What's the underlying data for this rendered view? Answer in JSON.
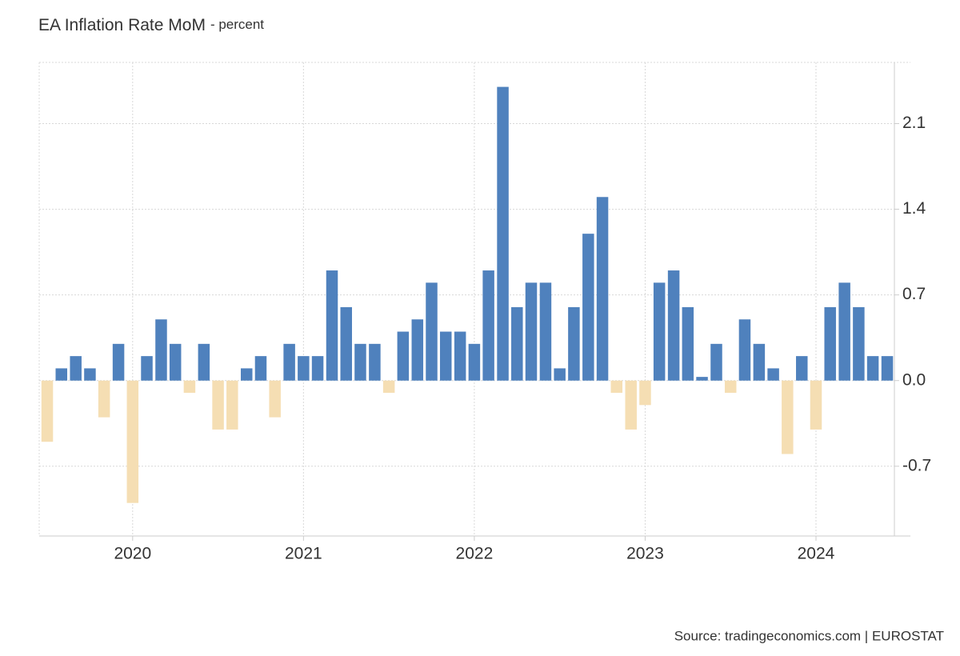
{
  "chart_data": {
    "type": "bar",
    "title": "EA Inflation Rate MoM",
    "subtitle": "- percent",
    "source": "Source: tradingeconomics.com | EUROSTAT",
    "x": [
      2019.5,
      2019.583,
      2019.667,
      2019.75,
      2019.833,
      2019.917,
      2020,
      2020.083,
      2020.167,
      2020.25,
      2020.333,
      2020.417,
      2020.5,
      2020.583,
      2020.667,
      2020.75,
      2020.833,
      2020.917,
      2021,
      2021.083,
      2021.167,
      2021.25,
      2021.333,
      2021.417,
      2021.5,
      2021.583,
      2021.667,
      2021.75,
      2021.833,
      2021.917,
      2022,
      2022.083,
      2022.167,
      2022.25,
      2022.333,
      2022.417,
      2022.5,
      2022.583,
      2022.667,
      2022.75,
      2022.833,
      2022.917,
      2023,
      2023.083,
      2023.167,
      2023.25,
      2023.333,
      2023.417,
      2023.5,
      2023.583,
      2023.667,
      2023.75,
      2023.833,
      2023.917,
      2024,
      2024.083,
      2024.167,
      2024.25,
      2024.333,
      2024.417
    ],
    "values": [
      -0.5,
      0.1,
      0.2,
      0.1,
      -0.3,
      0.3,
      -1.0,
      0.2,
      0.5,
      0.3,
      -0.1,
      0.3,
      -0.4,
      -0.4,
      0.1,
      0.2,
      -0.3,
      0.3,
      0.2,
      0.2,
      0.9,
      0.6,
      0.3,
      0.3,
      -0.1,
      0.4,
      0.5,
      0.8,
      0.4,
      0.4,
      0.3,
      0.9,
      2.4,
      0.6,
      0.8,
      0.8,
      0.1,
      0.6,
      1.2,
      1.5,
      -0.1,
      -0.4,
      -0.2,
      0.8,
      0.9,
      0.6,
      0.03,
      0.3,
      -0.1,
      0.5,
      0.3,
      0.1,
      -0.6,
      0.2,
      -0.4,
      0.6,
      0.8,
      0.6,
      0.2,
      0.2
    ],
    "color": "#4f81bd",
    "negative_color": "#f5deb3",
    "xlim": [
      2019.453,
      2024.459
    ],
    "xticks": [
      2020,
      2021,
      2022,
      2023,
      2024
    ],
    "ylim": [
      -1.27,
      2.6
    ],
    "yticks": [
      -0.7,
      {
        "value": 0,
        "label": "0.0"
      },
      0.7,
      1.4,
      2.1
    ],
    "grid": true
  }
}
